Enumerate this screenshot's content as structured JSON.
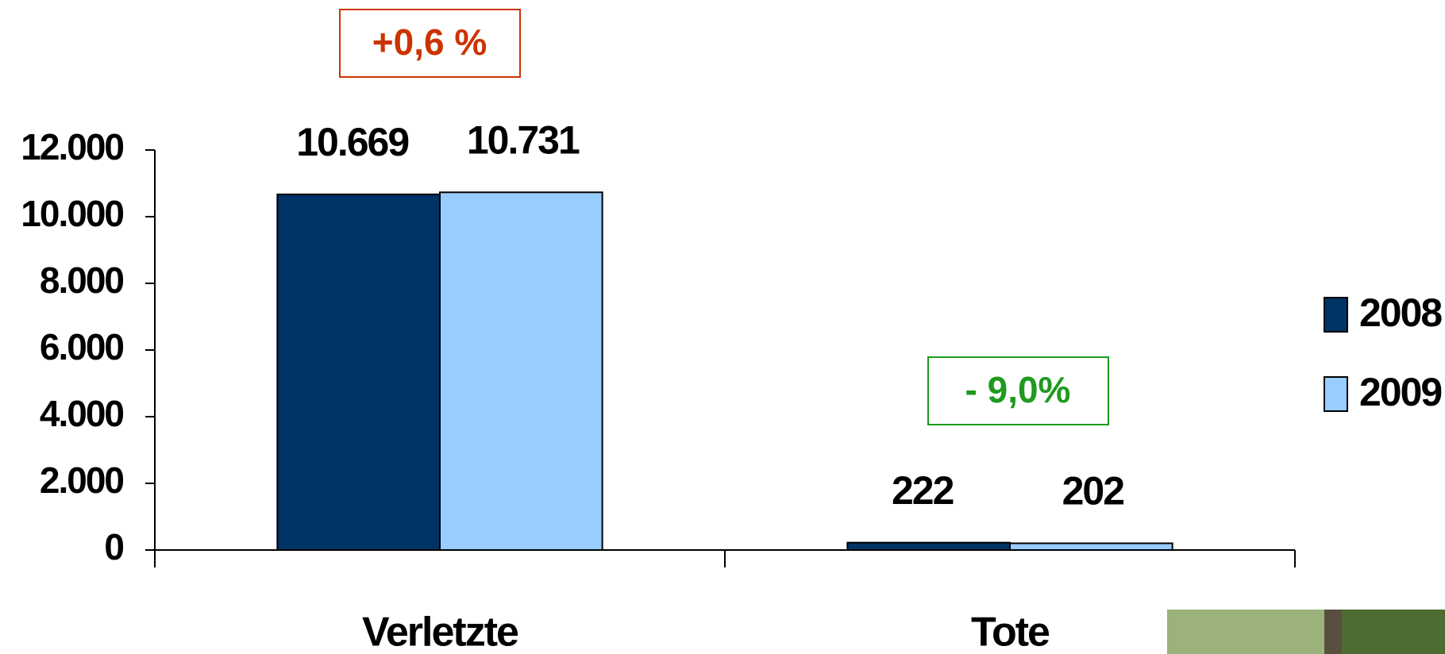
{
  "chart_data": {
    "type": "bar",
    "categories": [
      "Verletzte",
      "Tote"
    ],
    "series": [
      {
        "name": "2008",
        "color": "#003366",
        "values": [
          10669,
          222
        ],
        "value_labels": [
          "10.669",
          "222"
        ]
      },
      {
        "name": "2009",
        "color": "#99ccff",
        "values": [
          10731,
          202
        ],
        "value_labels": [
          "10.731",
          "202"
        ]
      }
    ],
    "ylim": [
      0,
      12000
    ],
    "yticks": [
      0,
      {
        "value": 2000,
        "label": "2.000"
      },
      {
        "value": 4000,
        "label": "4.000"
      },
      {
        "value": 6000,
        "label": "6.000"
      },
      {
        "value": 8000,
        "label": "8.000"
      },
      {
        "value": 10000,
        "label": "10.000"
      },
      {
        "value": 12000,
        "label": "12.000"
      }
    ],
    "annotations": [
      "+0,6 %",
      "- 9,0%"
    ],
    "annotation_colors": [
      "#cc3300",
      "#1f9a1f"
    ],
    "legend": "right"
  }
}
